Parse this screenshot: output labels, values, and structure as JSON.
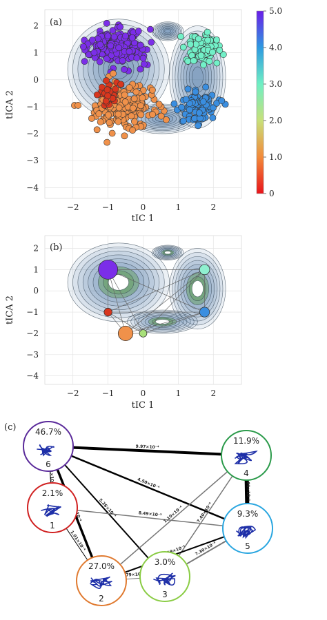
{
  "chart_data": [
    {
      "panel": "(a)",
      "type": "scatter",
      "xlabel": "tIC 1",
      "ylabel": "tICA 2",
      "xlim": [
        -2.8,
        2.8
      ],
      "ylim": [
        -4.4,
        2.6
      ],
      "xticks": [
        "−2",
        "−1",
        "0",
        "1",
        "2"
      ],
      "yticks": [
        "2",
        "1",
        "0",
        "−1",
        "−2",
        "−3",
        "−4"
      ],
      "grid": true,
      "colorbar": {
        "ticks": [
          "5.0",
          "4.0",
          "3.0",
          "2.0",
          "1.0",
          "0"
        ],
        "range": [
          0,
          5
        ],
        "colors": [
          "#e8141b",
          "#f28a3a",
          "#c8e07a",
          "#6fefc4",
          "#2e9ae0",
          "#6a1de8"
        ]
      },
      "clusters": [
        {
          "state": 5.0,
          "color": "#7b2ee8",
          "center": [
            -0.8,
            1.2
          ],
          "spread": [
            0.55,
            0.45
          ]
        },
        {
          "state": 1.0,
          "color": "#f0914a",
          "center": [
            -0.6,
            -1.0
          ],
          "spread": [
            0.6,
            0.55
          ]
        },
        {
          "state": 0.3,
          "color": "#d8361e",
          "center": [
            -1.0,
            -0.5
          ],
          "spread": [
            0.25,
            0.25
          ]
        },
        {
          "state": 3.0,
          "color": "#72f0c8",
          "center": [
            1.7,
            1.1
          ],
          "spread": [
            0.35,
            0.45
          ]
        },
        {
          "state": 4.0,
          "color": "#3a8ee0",
          "center": [
            1.6,
            -1.0
          ],
          "spread": [
            0.35,
            0.4
          ]
        }
      ]
    },
    {
      "panel": "(b)",
      "type": "scatter",
      "xlabel": "tIC 1",
      "ylabel": "tICA 2",
      "xlim": [
        -2.8,
        2.8
      ],
      "ylim": [
        -4.4,
        2.6
      ],
      "xticks": [
        "−2",
        "−1",
        "0",
        "1",
        "2"
      ],
      "yticks": [
        "2",
        "1",
        "0",
        "−1",
        "−2",
        "−3",
        "−4"
      ],
      "grid": true,
      "nodes": [
        {
          "x": -1.0,
          "y": 1.0,
          "color": "#7b2ee8",
          "size": 1.0
        },
        {
          "x": -1.0,
          "y": -1.0,
          "color": "#d8361e",
          "size": 0.25
        },
        {
          "x": -0.5,
          "y": -2.0,
          "color": "#f0914a",
          "size": 0.7
        },
        {
          "x": 0.0,
          "y": -2.0,
          "color": "#a8e07a",
          "size": 0.22
        },
        {
          "x": 1.75,
          "y": 1.0,
          "color": "#8ff0d0",
          "size": 0.4
        },
        {
          "x": 1.75,
          "y": -1.0,
          "color": "#3a8ee0",
          "size": 0.38
        }
      ]
    },
    {
      "panel": "(c)",
      "type": "network",
      "states": [
        {
          "id": "6",
          "label": "6",
          "pct": "46.7%",
          "color": "#5a2a9a"
        },
        {
          "id": "1",
          "label": "1",
          "pct": "2.1%",
          "color": "#d02020"
        },
        {
          "id": "2",
          "label": "2",
          "pct": "27.0%",
          "color": "#e07a30"
        },
        {
          "id": "3",
          "label": "3",
          "pct": "3.0%",
          "color": "#8acc44"
        },
        {
          "id": "4",
          "label": "4",
          "pct": "11.9%",
          "color": "#2a9a4a"
        },
        {
          "id": "5",
          "label": "5",
          "pct": "9.3%",
          "color": "#2aa6e0"
        }
      ],
      "edges": [
        {
          "from": "6",
          "to": "4",
          "rate": "9.97×10⁻⁴",
          "weight": 4
        },
        {
          "from": "6",
          "to": "5",
          "rate": "4.50×10⁻⁴",
          "weight": 2.5
        },
        {
          "from": "6",
          "to": "3",
          "rate": "5.26×10⁻⁴",
          "weight": 2
        },
        {
          "from": "6",
          "to": "2",
          "rate": "8.82×10⁻⁴",
          "weight": 3.5
        },
        {
          "from": "6",
          "to": "1",
          "rate": "1.01×10⁻⁴",
          "weight": 1
        },
        {
          "from": "4",
          "to": "5",
          "rate": "1.01×10⁻³",
          "weight": 6
        },
        {
          "from": "4",
          "to": "2",
          "rate": "1.10×10⁻⁴",
          "weight": 1.5
        },
        {
          "from": "4",
          "to": "3",
          "rate": "7.40×10⁻⁵",
          "weight": 1.5
        },
        {
          "from": "1",
          "to": "5",
          "rate": "8.49×10⁻⁵",
          "weight": 1.5
        },
        {
          "from": "1",
          "to": "2",
          "rate": "1.01×10⁻⁴",
          "weight": 1
        },
        {
          "from": "2",
          "to": "5",
          "rate": "9.19×10⁻⁵",
          "weight": 2
        },
        {
          "from": "2",
          "to": "3",
          "rate": "3.79×10⁻⁵",
          "weight": 1
        },
        {
          "from": "3",
          "to": "5",
          "rate": "7.30×10⁻⁵",
          "weight": 2
        }
      ]
    }
  ]
}
